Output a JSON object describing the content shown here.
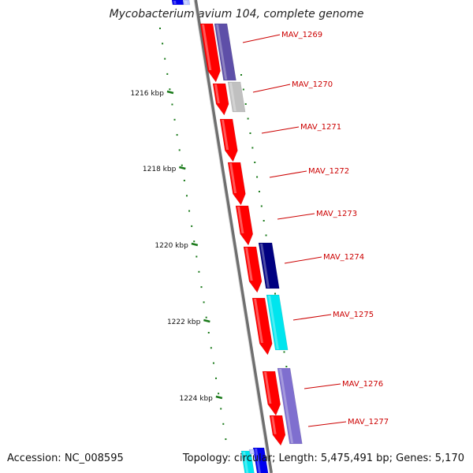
{
  "title": "Mycobacterium avium 104, complete genome",
  "accession": "Accession: NC_008595",
  "summary": "Topology: circular; Length: 5,475,491 bp; Genes: 5,170",
  "colors": {
    "backbone": "#888888",
    "tick": "#1a7a1a",
    "label": "#cc0000",
    "cds_forward": "#ff0000",
    "cog_purple": "#5e4fa8",
    "cog_gray": "#c0c0c0",
    "cog_navy": "#000080",
    "cog_cyan": "#00e5ee",
    "cog_lavender": "#7f6fcf",
    "cog_blue": "#0000ee",
    "cog_lightblue": "#b8c4ff"
  },
  "scale_labels": [
    "1216 kbp",
    "1218 kbp",
    "1220 kbp",
    "1222 kbp",
    "1224 kbp"
  ],
  "genes": [
    {
      "name": "MAV_1269"
    },
    {
      "name": "MAV_1270"
    },
    {
      "name": "MAV_1271"
    },
    {
      "name": "MAV_1272"
    },
    {
      "name": "MAV_1273"
    },
    {
      "name": "MAV_1274"
    },
    {
      "name": "MAV_1275"
    },
    {
      "name": "MAV_1276"
    },
    {
      "name": "MAV_1277"
    }
  ]
}
